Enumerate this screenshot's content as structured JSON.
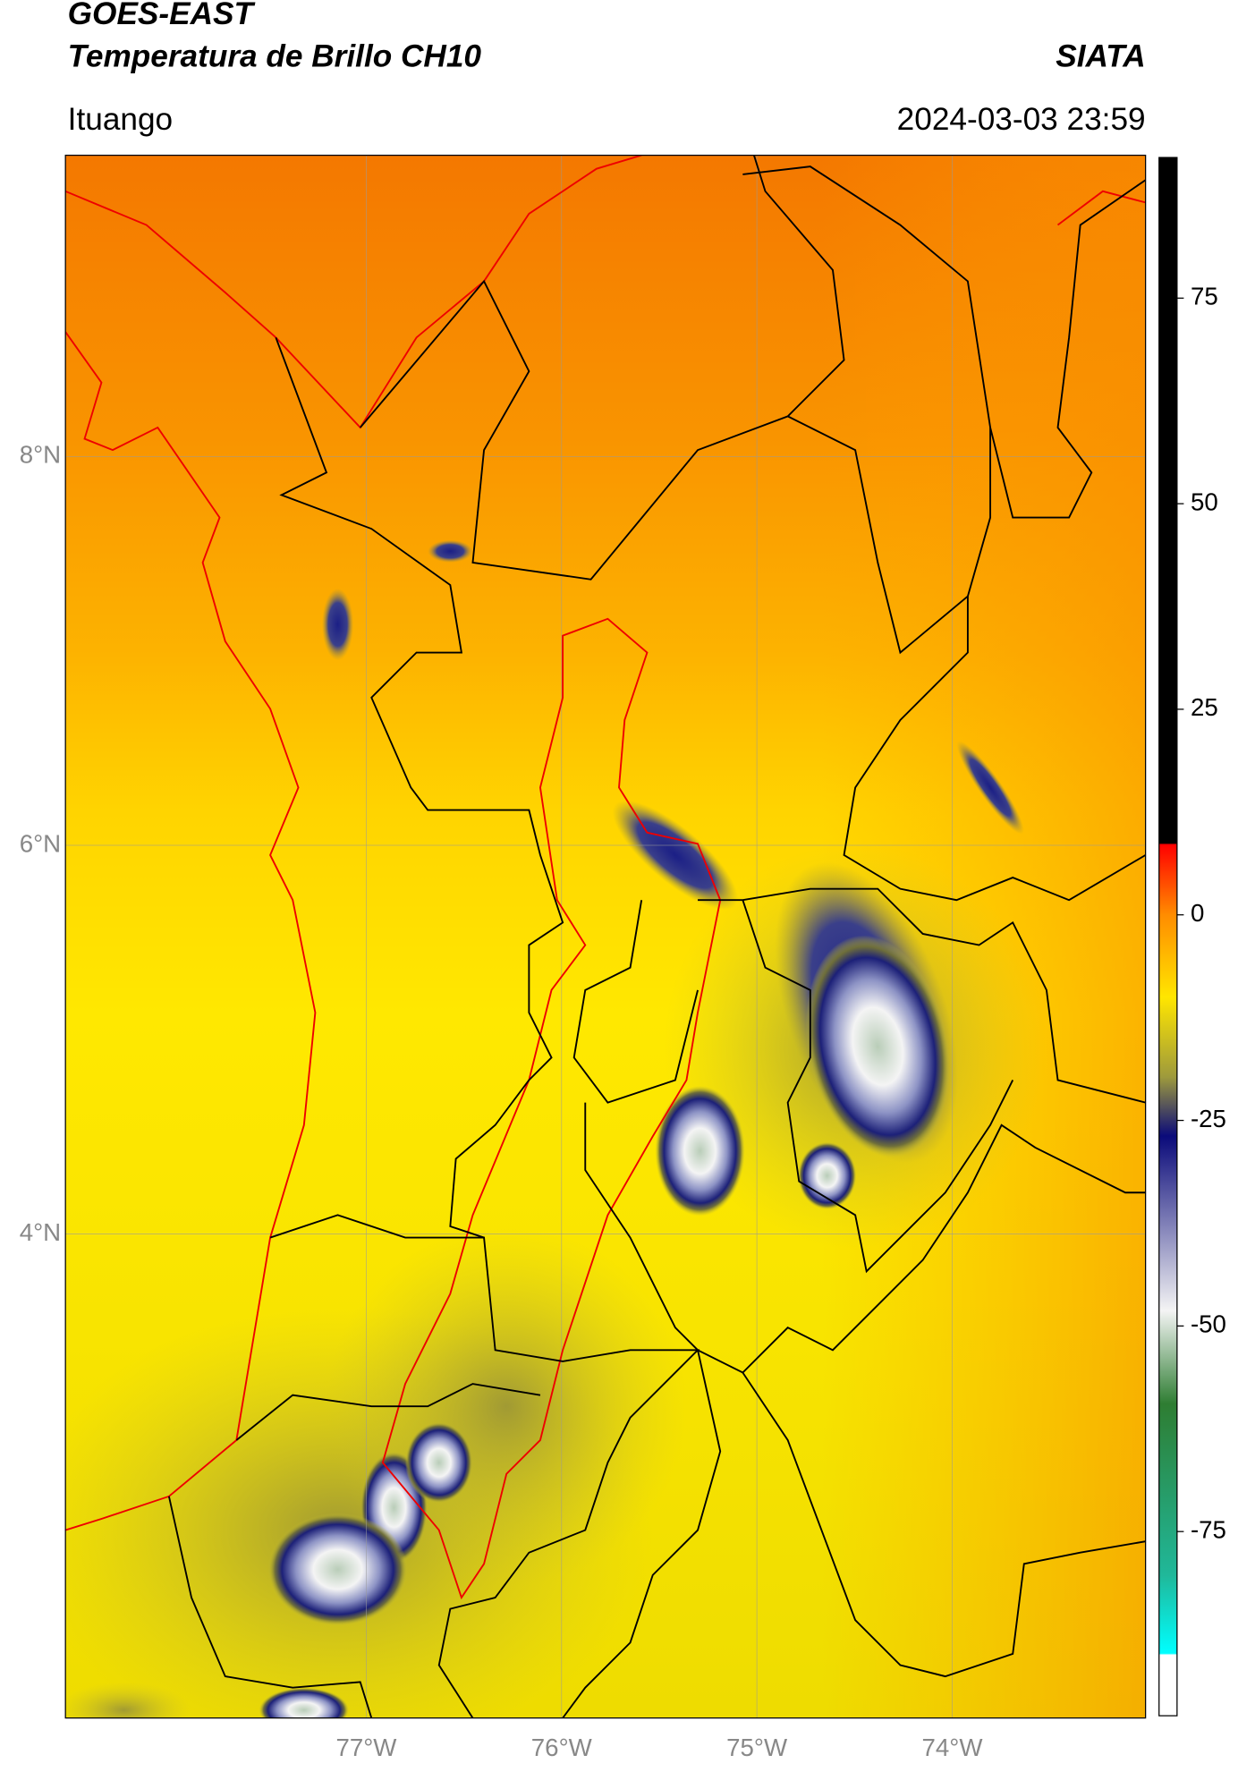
{
  "header": {
    "title": "GOES-EAST",
    "subtitle": "Temperatura de Brillo CH10",
    "brand": "SIATA",
    "region": "Ituango",
    "datetime": "2024-03-03 23:59"
  },
  "map": {
    "lon_extent": [
      -78.54,
      -73.01
    ],
    "lat_extent": [
      1.51,
      9.55
    ],
    "lat_ticks": [
      {
        "value": 8,
        "label": "8°N"
      },
      {
        "value": 6,
        "label": "6°N"
      },
      {
        "value": 4,
        "label": "4°N"
      }
    ],
    "lon_ticks": [
      {
        "value": -77,
        "label": "77°W"
      },
      {
        "value": -76,
        "label": "76°W"
      },
      {
        "value": -75,
        "label": "75°W"
      },
      {
        "value": -74,
        "label": "74°W"
      }
    ],
    "grid": true
  },
  "colorbar": {
    "lim": [
      -97.4,
      92.1
    ],
    "ticks": [
      75,
      50,
      25,
      0,
      -25,
      -50,
      -75
    ]
  }
}
